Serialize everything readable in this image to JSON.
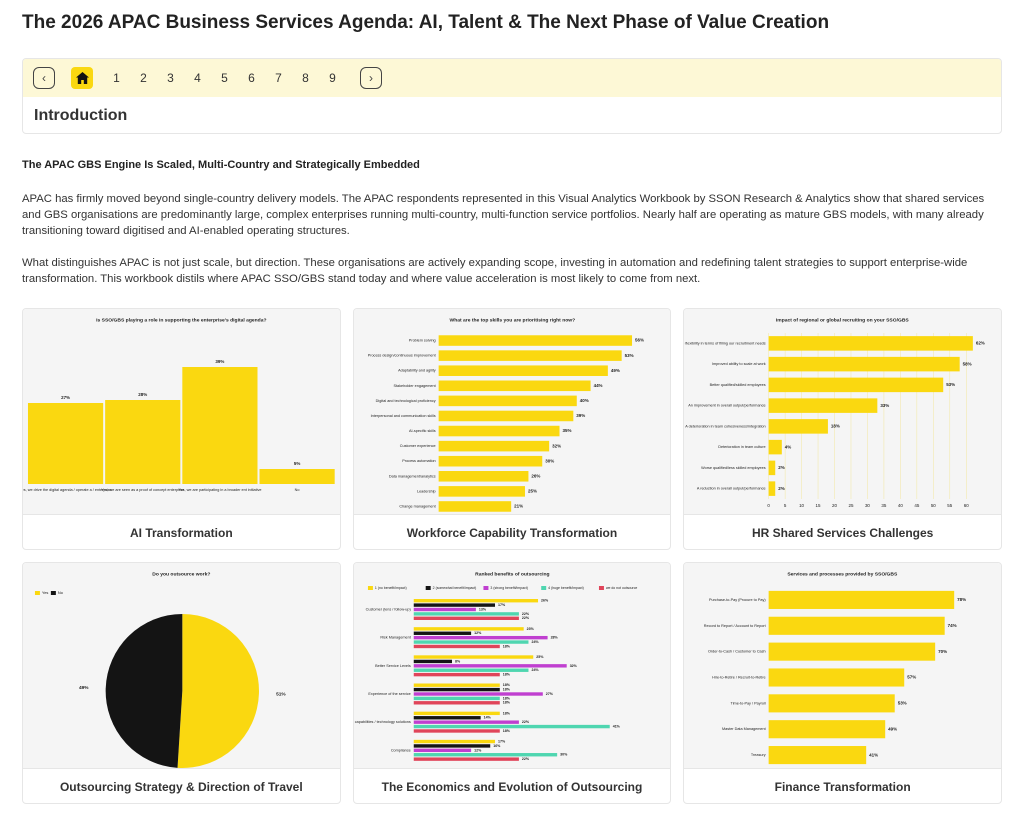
{
  "header": {
    "title": "The 2026 APAC Business Services Agenda: AI, Talent & The Next Phase of Value Creation"
  },
  "nav": {
    "pages": [
      "1",
      "2",
      "3",
      "4",
      "5",
      "6",
      "7",
      "8",
      "9"
    ],
    "section": "Introduction"
  },
  "intro": {
    "heading": "The APAC GBS Engine Is Scaled, Multi-Country and Strategically Embedded",
    "paragraphs": [
      "APAC has firmly moved beyond single-country delivery models. The APAC respondents represented in this Visual Analytics Workbook by SSON Research & Analytics show that shared services and GBS organisations are predominantly large, complex enterprises running multi-country, multi-function service portfolios. Nearly half are operating as mature GBS models, with many already transitioning toward digitised and AI-enabled operating structures.",
      "What distinguishes APAC is not just scale, but direction. These organisations are actively expanding scope, investing in automation and redefining talent strategies to support enterprise-wide transformation. This workbook distils where APAC SSO/GBS stand today and where value acceleration is most likely to come from next."
    ]
  },
  "cards": [
    {
      "caption": "AI Transformation",
      "chart": {
        "type": "vbar",
        "title": "Is SSO/GBS playing a role in supporting the enterprise's digital agenda?",
        "color": "#fad810",
        "categories": [
          "Yes, we drive the digital agenda / operate a / enterprise",
          "Yes, we are seen as a proof of concept enterprise",
          "Yes, we are participating in a broader ent initiative",
          "No"
        ],
        "values": [
          27,
          28,
          39,
          5
        ],
        "value_labels": [
          "27%",
          "28%",
          "39%",
          "5%"
        ],
        "ylim": [
          0,
          45
        ]
      }
    },
    {
      "caption": "Workforce Capability Transformation",
      "chart": {
        "type": "hbar",
        "title": "What are the top skills you are prioritising right now?",
        "color": "#fad810",
        "categories": [
          "Problem solving",
          "Process design/continuous improvement",
          "Adaptability and agility",
          "Stakeholder engagement",
          "Digital and technological proficiency",
          "Interpersonal and communication skills",
          "AI-specific skills",
          "Customer experience",
          "Process automation",
          "Data management/analytics",
          "Leadership",
          "Change management"
        ],
        "values": [
          56,
          53,
          49,
          44,
          40,
          39,
          35,
          32,
          30,
          26,
          25,
          21
        ],
        "value_labels": [
          "56%",
          "53%",
          "49%",
          "44%",
          "40%",
          "39%",
          "35%",
          "32%",
          "30%",
          "26%",
          "25%",
          "21%"
        ],
        "xlim": [
          0,
          62
        ]
      }
    },
    {
      "caption": "HR Shared Services Challenges",
      "chart": {
        "type": "hbar",
        "title": "Impact of regional or global recruiting on your SSO/GBS",
        "color": "#fad810",
        "categories": [
          "More flexibility in terms of filling our recruitment needs",
          "Improved ability to scale at work",
          "Better qualified/skilled employees",
          "An improvement in overall output/performance",
          "A deterioration in team cohesiveness/integration",
          "Deterioration in team culture",
          "Worse qualified/less skilled employees",
          "A reduction in overall output/performance"
        ],
        "values": [
          62,
          58,
          53,
          33,
          18,
          4,
          2,
          2
        ],
        "value_labels": [
          "62%",
          "58%",
          "53%",
          "33%",
          "18%",
          "4%",
          "2%",
          "2%"
        ],
        "xlim": [
          0,
          65
        ],
        "xticks": [
          0,
          5,
          10,
          15,
          20,
          25,
          30,
          35,
          40,
          45,
          50,
          55,
          60
        ]
      }
    },
    {
      "caption": "Outsourcing Strategy & Direction of Travel",
      "chart": {
        "type": "pie",
        "title": "Do you outsource work?",
        "categories": [
          "Yes",
          "No"
        ],
        "colors": [
          "#fad810",
          "#141414"
        ],
        "values": [
          51,
          49
        ],
        "value_labels": [
          "51%",
          "49%"
        ]
      }
    },
    {
      "caption": "The Economics and Evolution of Outsourcing",
      "chart": {
        "type": "grouped_hbar",
        "title": "Ranked benefits of outsourcing",
        "categories": [
          "Customer (lens / follow-up)",
          "Risk Management",
          "Better Service Levels",
          "Experience of the service",
          "Tech-enabling capabilities / technology solutions",
          "Compliance"
        ],
        "series": [
          {
            "name": "1 (no benefit/impact)",
            "color": "#fad810",
            "values": [
              26,
              23,
              25,
              18,
              18,
              17
            ],
            "value_labels": [
              "26%",
              "23%",
              "25%",
              "18%",
              "18%",
              "17%"
            ]
          },
          {
            "name": "2 (somewhat benefit/impact)",
            "color": "#141414",
            "values": [
              17,
              12,
              8,
              18,
              14,
              16
            ],
            "value_labels": [
              "17%",
              "12%",
              "8%",
              "18%",
              "14%",
              "16%"
            ]
          },
          {
            "name": "3 (strong benefit/impact)",
            "color": "#c03fd0",
            "values": [
              13,
              28,
              32,
              27,
              22,
              12
            ],
            "value_labels": [
              "13%",
              "28%",
              "32%",
              "27%",
              "22%",
              "12%"
            ]
          },
          {
            "name": "4 (huge benefit/impact)",
            "color": "#4fd6b0",
            "values": [
              22,
              24,
              24,
              18,
              41,
              30
            ],
            "value_labels": [
              "22%",
              "24%",
              "24%",
              "18%",
              "41%",
              "30%"
            ]
          },
          {
            "name": "we do not outsource",
            "color": "#e0455a",
            "values": [
              22,
              18,
              18,
              18,
              18,
              22
            ],
            "value_labels": [
              "22%",
              "18%",
              "18%",
              "18%",
              "18%",
              "22%"
            ]
          }
        ],
        "xlim": [
          0,
          50
        ]
      }
    },
    {
      "caption": "Finance Transformation",
      "chart": {
        "type": "hbar",
        "title": "Services and processes provided by SSO/GBS",
        "color": "#fad810",
        "categories": [
          "Purchase-to-Pay (Procure to Pay)",
          "Record to Report / Account to Report",
          "Order-to-Cash / Customer to Cash",
          "Hire-to-Retire / Recruit-to-Retire",
          "Time-to-Pay / Payroll",
          "Master Data Management",
          "Treasury"
        ],
        "values": [
          78,
          74,
          70,
          57,
          53,
          49,
          41
        ],
        "value_labels": [
          "78%",
          "74%",
          "70%",
          "57%",
          "53%",
          "49%",
          "41%"
        ],
        "xlim": [
          0,
          90
        ]
      }
    }
  ]
}
